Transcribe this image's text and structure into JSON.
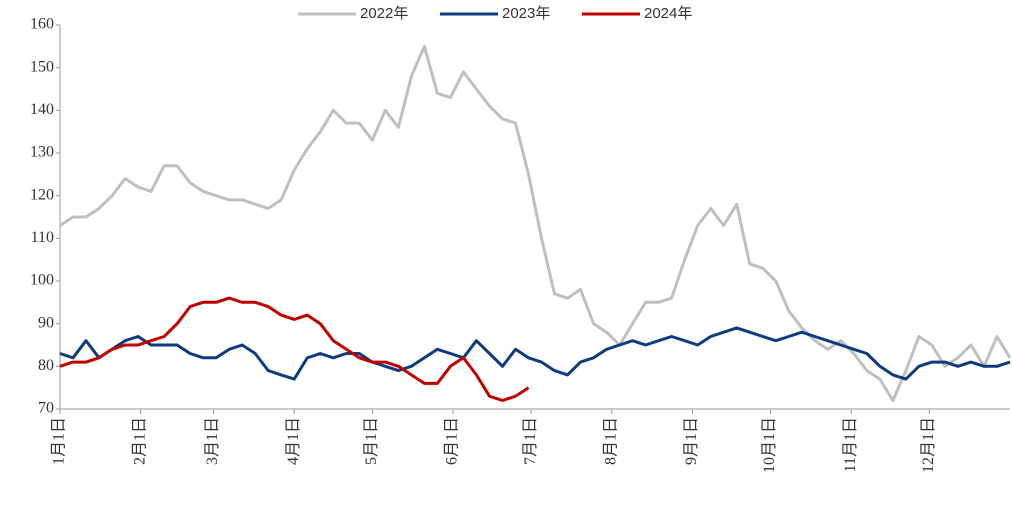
{
  "chart_data": {
    "type": "line",
    "x": [
      0,
      5,
      10,
      15,
      20,
      25,
      30,
      35,
      40,
      45,
      50,
      55,
      60,
      65,
      70,
      75,
      80,
      85,
      90,
      95,
      100,
      105,
      110,
      115,
      120,
      125,
      130,
      135,
      140,
      145,
      150,
      155,
      160,
      165,
      170,
      175,
      180,
      185,
      190,
      195,
      200,
      205,
      210,
      215,
      220,
      225,
      230,
      235,
      240,
      245,
      250,
      255,
      260,
      265,
      270,
      275,
      280,
      285,
      290,
      295,
      300,
      305,
      310,
      315,
      320,
      325,
      330,
      335,
      340,
      345,
      350,
      355,
      360,
      365
    ],
    "series": [
      {
        "name": "2022年",
        "color": "#bfbfbf",
        "values": [
          113,
          115,
          115,
          117,
          120,
          124,
          122,
          121,
          127,
          127,
          123,
          121,
          120,
          119,
          119,
          118,
          117,
          119,
          126,
          131,
          135,
          140,
          137,
          137,
          133,
          140,
          136,
          148,
          155,
          144,
          143,
          149,
          145,
          141,
          138,
          137,
          125,
          110,
          97,
          96,
          98,
          90,
          88,
          85,
          90,
          95,
          95,
          96,
          105,
          113,
          117,
          113,
          118,
          104,
          103,
          100,
          93,
          89,
          86,
          84,
          86,
          83,
          79,
          77,
          72,
          79,
          87,
          85,
          80,
          82,
          85,
          80,
          87,
          82
        ]
      },
      {
        "name": "2023年",
        "color": "#0e3a7e",
        "values": [
          83,
          82,
          86,
          82,
          84,
          86,
          87,
          85,
          85,
          85,
          83,
          82,
          82,
          84,
          85,
          83,
          79,
          78,
          77,
          82,
          83,
          82,
          83,
          83,
          81,
          80,
          79,
          80,
          82,
          84,
          83,
          82,
          86,
          83,
          80,
          84,
          82,
          81,
          79,
          78,
          81,
          82,
          84,
          85,
          86,
          85,
          86,
          87,
          86,
          85,
          87,
          88,
          89,
          88,
          87,
          86,
          87,
          88,
          87,
          86,
          85,
          84,
          83,
          80,
          78,
          77,
          80,
          81,
          81,
          80,
          81,
          80,
          80,
          81
        ]
      },
      {
        "name": "2024年",
        "color": "#c00000",
        "values": [
          80,
          81,
          81,
          82,
          84,
          85,
          85,
          86,
          87,
          90,
          94,
          95,
          95,
          96,
          95,
          95,
          94,
          92,
          91,
          92,
          90,
          86,
          84,
          82,
          81,
          81,
          80,
          78,
          76,
          76,
          80,
          82,
          78,
          73,
          72,
          73,
          75,
          null,
          null,
          null,
          null,
          null,
          null,
          null,
          null,
          null,
          null,
          null,
          null,
          null,
          null,
          null,
          null,
          null,
          null,
          null,
          null,
          null,
          null,
          null,
          null,
          null,
          null,
          null,
          null,
          null,
          null,
          null,
          null,
          null,
          null,
          null,
          null,
          null
        ]
      }
    ],
    "xlim": [
      0,
      365
    ],
    "xticks": [
      {
        "value": 0,
        "label": "1月1日"
      },
      {
        "value": 31,
        "label": "2月1日"
      },
      {
        "value": 59,
        "label": "3月1日"
      },
      {
        "value": 90,
        "label": "4月1日"
      },
      {
        "value": 120,
        "label": "5月1日"
      },
      {
        "value": 151,
        "label": "6月1日"
      },
      {
        "value": 181,
        "label": "7月1日"
      },
      {
        "value": 212,
        "label": "8月1日"
      },
      {
        "value": 243,
        "label": "9月1日"
      },
      {
        "value": 273,
        "label": "10月1日"
      },
      {
        "value": 304,
        "label": "11月1日"
      },
      {
        "value": 334,
        "label": "12月1日"
      }
    ],
    "ylim": [
      70,
      160
    ],
    "yticks": [
      70,
      80,
      90,
      100,
      110,
      120,
      130,
      140,
      150,
      160
    ]
  }
}
